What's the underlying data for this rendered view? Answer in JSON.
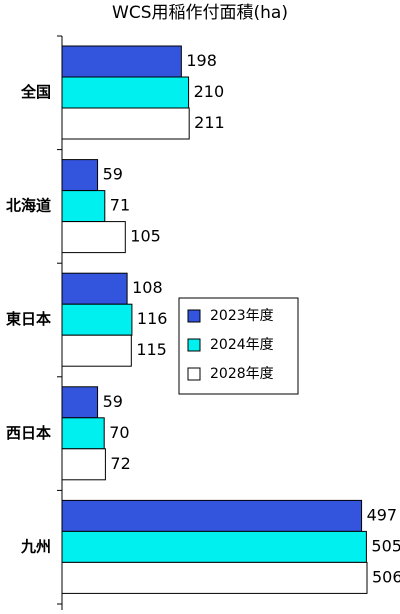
{
  "chart_data": {
    "type": "bar",
    "orientation": "horizontal",
    "title": "WCS用稲作付面積(ha)",
    "xlabel": "",
    "ylabel": "",
    "categories": [
      "全国",
      "北海道",
      "東日本",
      "西日本",
      "九州"
    ],
    "series": [
      {
        "name": "2023年度",
        "color": "#3355dd",
        "values": [
          198,
          59,
          108,
          59,
          497
        ]
      },
      {
        "name": "2024年度",
        "color": "#00f0f0",
        "values": [
          210,
          71,
          116,
          70,
          505
        ]
      },
      {
        "name": "2028年度",
        "color": "#ffffff",
        "values": [
          211,
          105,
          115,
          72,
          506
        ]
      }
    ],
    "xlim": [
      0,
      506
    ],
    "grid": false,
    "legend_position": "right-middle",
    "data_labels": true
  }
}
